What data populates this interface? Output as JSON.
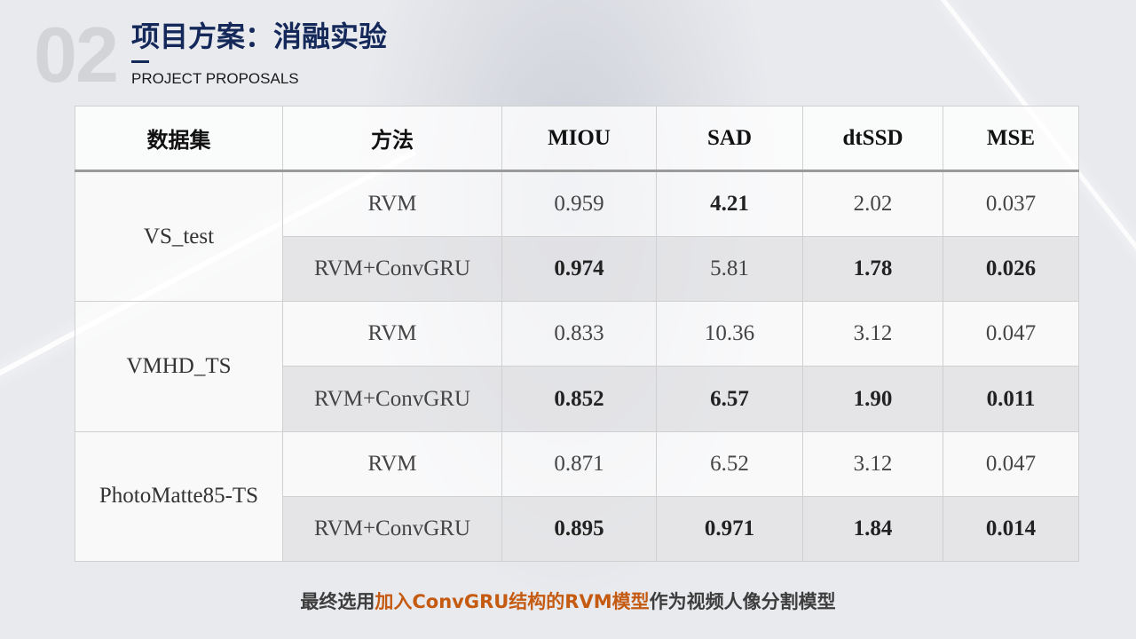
{
  "slide": {
    "number": "02",
    "title": "项目方案：消融实验",
    "subtitle": "PROJECT PROPOSALS"
  },
  "table": {
    "headers": [
      "数据集",
      "方法",
      "MIOU",
      "SAD",
      "dtSSD",
      "MSE"
    ],
    "groups": [
      {
        "dataset": "VS_test",
        "rows": [
          {
            "method": "RVM",
            "miou": "0.959",
            "sad": "4.21",
            "dtssd": "2.02",
            "mse": "0.037"
          },
          {
            "method": "RVM+ConvGRU",
            "miou": "0.974",
            "sad": "5.81",
            "dtssd": "1.78",
            "mse": "0.026"
          }
        ]
      },
      {
        "dataset": "VMHD_TS",
        "rows": [
          {
            "method": "RVM",
            "miou": "0.833",
            "sad": "10.36",
            "dtssd": "3.12",
            "mse": "0.047"
          },
          {
            "method": "RVM+ConvGRU",
            "miou": "0.852",
            "sad": "6.57",
            "dtssd": "1.90",
            "mse": "0.011"
          }
        ]
      },
      {
        "dataset": "PhotoMatte85-TS",
        "rows": [
          {
            "method": "RVM",
            "miou": "0.871",
            "sad": "6.52",
            "dtssd": "3.12",
            "mse": "0.047"
          },
          {
            "method": "RVM+ConvGRU",
            "miou": "0.895",
            "sad": "0.971",
            "dtssd": "1.84",
            "mse": "0.014"
          }
        ]
      }
    ]
  },
  "footer": {
    "before": "最终选用",
    "highlight": "加入ConvGRU结构的RVM模型",
    "after": "作为视频人像分割模型"
  },
  "colors": {
    "title": "#14285a",
    "highlight": "#c55a11",
    "big_number": "#d3d4d8"
  }
}
